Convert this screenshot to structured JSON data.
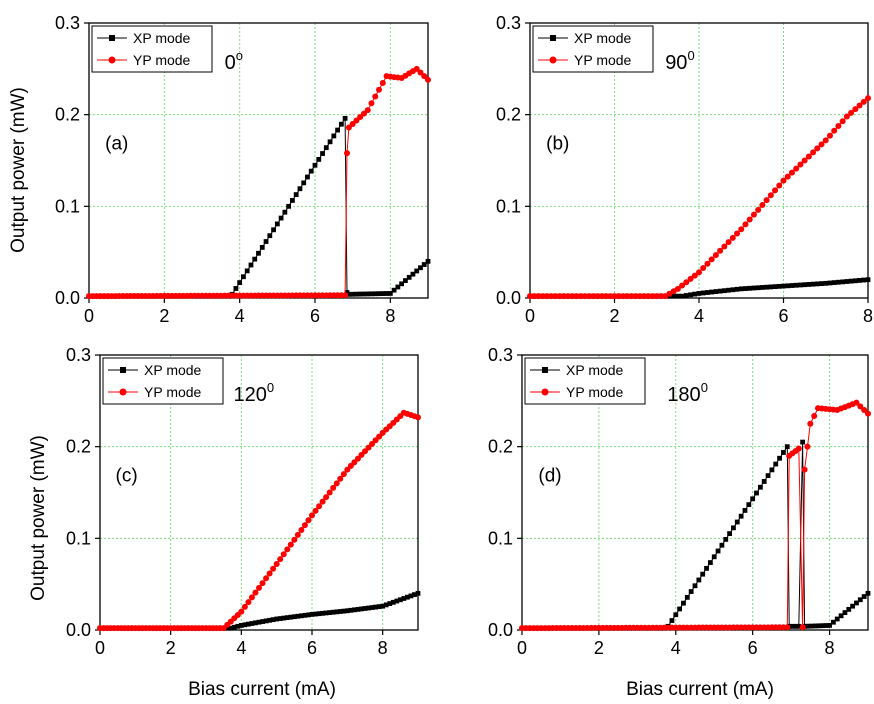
{
  "figure": {
    "ylabel": "Output power (mW)",
    "xlabel": "Bias current (mA)"
  },
  "colors": {
    "xp": "#000000",
    "yp": "#ff0000",
    "grid": "#7CE07C"
  },
  "chart_data": [
    {
      "type": "line",
      "panel_label": "(a)",
      "angle": {
        "base": "0",
        "sup": "o"
      },
      "xlim": [
        0,
        9
      ],
      "ylim": [
        0,
        0.3
      ],
      "xticks": [
        0,
        2,
        4,
        6,
        8
      ],
      "yticks": [
        0.0,
        0.1,
        0.2,
        0.3
      ],
      "xtick_labels": [
        "0",
        "2",
        "4",
        "6",
        "8"
      ],
      "ytick_labels": [
        "0.0",
        "0.1",
        "0.2",
        "0.3"
      ],
      "grid": true,
      "legend": "top-left",
      "series": [
        {
          "name": "XP mode",
          "color": "#000000",
          "marker": "square",
          "step": 0.1,
          "points": [
            [
              0,
              0.002
            ],
            [
              3.7,
              0.002
            ],
            [
              3.8,
              0.004
            ],
            [
              6.8,
              0.196
            ],
            [
              6.85,
              0.006
            ],
            [
              6.9,
              0.004
            ],
            [
              8.0,
              0.005
            ],
            [
              9.0,
              0.04
            ]
          ]
        },
        {
          "name": "YP mode",
          "color": "#ff0000",
          "marker": "circle",
          "step": 0.1,
          "points": [
            [
              0,
              0.002
            ],
            [
              6.8,
              0.003
            ],
            [
              6.85,
              0.158
            ],
            [
              6.9,
              0.186
            ],
            [
              7.4,
              0.205
            ],
            [
              7.9,
              0.242
            ],
            [
              8.3,
              0.24
            ],
            [
              8.7,
              0.25
            ],
            [
              9.0,
              0.238
            ]
          ]
        }
      ]
    },
    {
      "type": "line",
      "panel_label": "(b)",
      "angle": {
        "base": "90",
        "sup": "0"
      },
      "xlim": [
        0,
        8
      ],
      "ylim": [
        0,
        0.3
      ],
      "xticks": [
        0,
        2,
        4,
        6,
        8
      ],
      "yticks": [
        0.0,
        0.1,
        0.2,
        0.3
      ],
      "xtick_labels": [
        "0",
        "2",
        "4",
        "6",
        "8"
      ],
      "ytick_labels": [
        "0.0",
        "0.1",
        "0.2",
        "0.3"
      ],
      "grid": true,
      "legend": "top-left",
      "series": [
        {
          "name": "XP mode",
          "color": "#000000",
          "marker": "square",
          "step": 0.1,
          "points": [
            [
              0,
              0.002
            ],
            [
              3.6,
              0.002
            ],
            [
              4.0,
              0.005
            ],
            [
              5.0,
              0.01
            ],
            [
              6.0,
              0.013
            ],
            [
              7.0,
              0.016
            ],
            [
              8.0,
              0.02
            ]
          ]
        },
        {
          "name": "YP mode",
          "color": "#ff0000",
          "marker": "circle",
          "step": 0.1,
          "points": [
            [
              0,
              0.002
            ],
            [
              3.2,
              0.002
            ],
            [
              3.5,
              0.01
            ],
            [
              4.0,
              0.028
            ],
            [
              5.0,
              0.075
            ],
            [
              6.0,
              0.128
            ],
            [
              7.0,
              0.172
            ],
            [
              7.5,
              0.198
            ],
            [
              8.0,
              0.218
            ]
          ]
        }
      ]
    },
    {
      "type": "line",
      "panel_label": "(c)",
      "angle": {
        "base": "120",
        "sup": "0"
      },
      "xlim": [
        0,
        9
      ],
      "ylim": [
        0,
        0.3
      ],
      "xticks": [
        0,
        2,
        4,
        6,
        8
      ],
      "yticks": [
        0.0,
        0.1,
        0.2,
        0.3
      ],
      "xtick_labels": [
        "0",
        "2",
        "4",
        "6",
        "8"
      ],
      "ytick_labels": [
        "0.0",
        "0.1",
        "0.2",
        "0.3"
      ],
      "grid": true,
      "legend": "top-left",
      "series": [
        {
          "name": "XP mode",
          "color": "#000000",
          "marker": "square",
          "step": 0.1,
          "points": [
            [
              0,
              0.002
            ],
            [
              3.7,
              0.002
            ],
            [
              4.0,
              0.005
            ],
            [
              5.0,
              0.012
            ],
            [
              6.0,
              0.017
            ],
            [
              7.0,
              0.021
            ],
            [
              8.0,
              0.026
            ],
            [
              9.0,
              0.04
            ]
          ]
        },
        {
          "name": "YP mode",
          "color": "#ff0000",
          "marker": "circle",
          "step": 0.1,
          "points": [
            [
              0,
              0.002
            ],
            [
              3.5,
              0.002
            ],
            [
              4.0,
              0.02
            ],
            [
              5.0,
              0.072
            ],
            [
              6.0,
              0.125
            ],
            [
              7.0,
              0.175
            ],
            [
              8.0,
              0.215
            ],
            [
              8.6,
              0.237
            ],
            [
              9.0,
              0.232
            ]
          ]
        }
      ]
    },
    {
      "type": "line",
      "panel_label": "(d)",
      "angle": {
        "base": "180",
        "sup": "0"
      },
      "xlim": [
        0,
        9
      ],
      "ylim": [
        0,
        0.3
      ],
      "xticks": [
        0,
        2,
        4,
        6,
        8
      ],
      "yticks": [
        0.0,
        0.1,
        0.2,
        0.3
      ],
      "xtick_labels": [
        "0",
        "2",
        "4",
        "6",
        "8"
      ],
      "ytick_labels": [
        "0.0",
        "0.1",
        "0.2",
        "0.3"
      ],
      "grid": true,
      "legend": "top-left",
      "series": [
        {
          "name": "XP mode",
          "color": "#000000",
          "marker": "square",
          "step": 0.1,
          "points": [
            [
              0,
              0.002
            ],
            [
              3.7,
              0.002
            ],
            [
              3.8,
              0.004
            ],
            [
              6.9,
              0.2
            ],
            [
              6.95,
              0.004
            ],
            [
              7.2,
              0.004
            ],
            [
              7.3,
              0.205
            ],
            [
              7.35,
              0.004
            ],
            [
              8.0,
              0.005
            ],
            [
              9.0,
              0.04
            ]
          ]
        },
        {
          "name": "YP mode",
          "color": "#ff0000",
          "marker": "circle",
          "step": 0.1,
          "points": [
            [
              0,
              0.002
            ],
            [
              6.9,
              0.003
            ],
            [
              6.95,
              0.19
            ],
            [
              7.2,
              0.198
            ],
            [
              7.3,
              0.003
            ],
            [
              7.35,
              0.175
            ],
            [
              7.5,
              0.225
            ],
            [
              7.7,
              0.242
            ],
            [
              8.2,
              0.24
            ],
            [
              8.7,
              0.248
            ],
            [
              9.0,
              0.236
            ]
          ]
        }
      ]
    }
  ]
}
